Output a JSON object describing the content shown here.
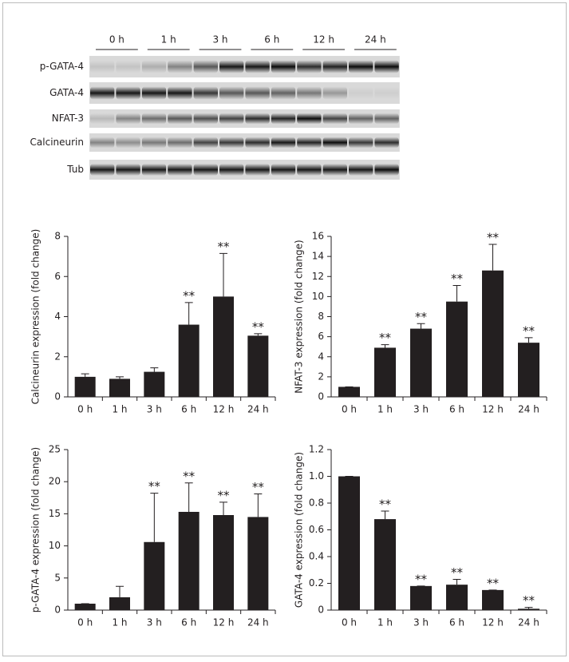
{
  "blot": {
    "time_labels": [
      "0 h",
      "1 h",
      "3 h",
      "6 h",
      "12 h",
      "24 h"
    ],
    "rows": [
      "p-GATA-4",
      "GATA-4",
      "NFAT-3",
      "Calcineurin",
      "Tub"
    ]
  },
  "chart_data": [
    {
      "type": "bar",
      "y_label": "Calcineurin expression (fold change)",
      "categories": [
        "0 h",
        "1 h",
        "3 h",
        "6 h",
        "12 h",
        "24 h"
      ],
      "values": [
        1.0,
        0.9,
        1.25,
        3.6,
        5.0,
        3.05
      ],
      "errors": [
        0.15,
        0.1,
        0.2,
        1.1,
        2.15,
        0.1
      ],
      "significance": [
        null,
        null,
        null,
        "**",
        "**",
        "**"
      ],
      "color": "#231f20",
      "ylim": [
        0,
        8
      ],
      "yticks": [
        0,
        2,
        4,
        6,
        8
      ]
    },
    {
      "type": "bar",
      "y_label": "NFAT-3 expression (fold change)",
      "categories": [
        "0 h",
        "1 h",
        "3 h",
        "6 h",
        "12 h",
        "24 h"
      ],
      "values": [
        1.0,
        4.9,
        6.8,
        9.5,
        12.6,
        5.4
      ],
      "errors": [
        0,
        0.3,
        0.5,
        1.6,
        2.6,
        0.5
      ],
      "significance": [
        null,
        "**",
        "**",
        "**",
        "**",
        "**"
      ],
      "color": "#231f20",
      "ylim": [
        0,
        16
      ],
      "yticks": [
        0,
        2,
        4,
        6,
        8,
        10,
        12,
        14,
        16
      ]
    },
    {
      "type": "bar",
      "y_label": "p-GATA-4 expression (fold change)",
      "categories": [
        "0 h",
        "1 h",
        "3 h",
        "6 h",
        "12 h",
        "24 h"
      ],
      "values": [
        1.0,
        2.0,
        10.6,
        15.3,
        14.8,
        14.5
      ],
      "errors": [
        0,
        1.7,
        7.6,
        4.5,
        2.0,
        3.6
      ],
      "significance": [
        null,
        null,
        "**",
        "**",
        "**",
        "**"
      ],
      "color": "#231f20",
      "ylim": [
        0,
        25
      ],
      "yticks": [
        0,
        5,
        10,
        15,
        20,
        25
      ]
    },
    {
      "type": "bar",
      "y_label": "GATA-4 expression (fold change)",
      "categories": [
        "0 h",
        "1 h",
        "3 h",
        "6 h",
        "12 h",
        "24 h"
      ],
      "values": [
        1.0,
        0.68,
        0.18,
        0.19,
        0.15,
        0.01
      ],
      "errors": [
        0,
        0.06,
        0,
        0.04,
        0,
        0.01
      ],
      "significance": [
        null,
        "**",
        "**",
        "**",
        "**",
        "**"
      ],
      "color": "#231f20",
      "ylim": [
        0,
        1.2
      ],
      "yticks": [
        0,
        0.2,
        0.4,
        0.6,
        0.8,
        {
          "value": 1,
          "label": "1.0"
        },
        1.2
      ]
    }
  ]
}
